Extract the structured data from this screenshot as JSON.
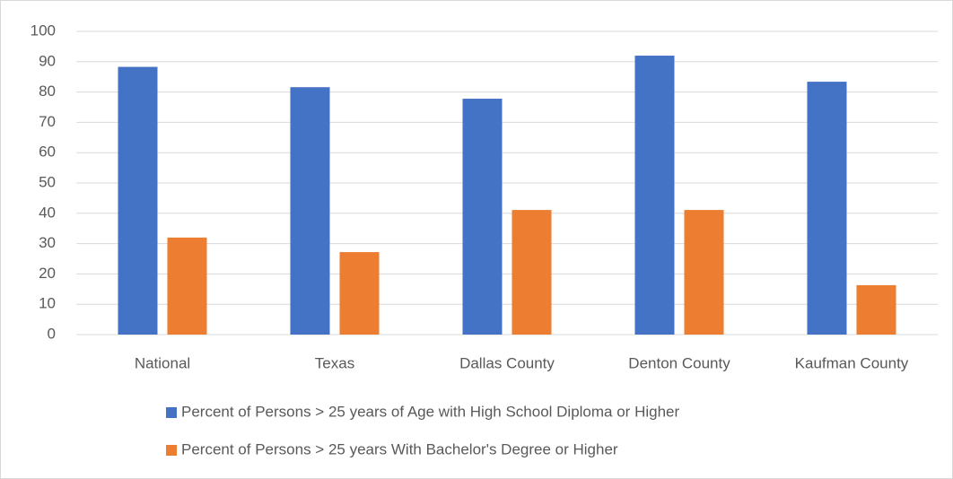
{
  "chart_data": {
    "type": "bar",
    "categories": [
      "National",
      "Texas",
      "Dallas County",
      "Denton County",
      "Kaufman County"
    ],
    "series": [
      {
        "name": "Percent of Persons > 25 years of Age with High School Diploma or Higher",
        "color": "#4472c4",
        "values": [
          88.3,
          81.6,
          77.8,
          92.0,
          83.4
        ]
      },
      {
        "name": "Percent of Persons > 25 years With Bachelor's Degree or Higher",
        "color": "#ed7d31",
        "values": [
          32.0,
          27.2,
          41.1,
          41.1,
          16.3
        ]
      }
    ],
    "ylim": [
      0,
      100
    ],
    "yticks": [
      0,
      10,
      20,
      30,
      40,
      50,
      60,
      70,
      80,
      90,
      100
    ],
    "grid": true,
    "legend": "bottom"
  }
}
